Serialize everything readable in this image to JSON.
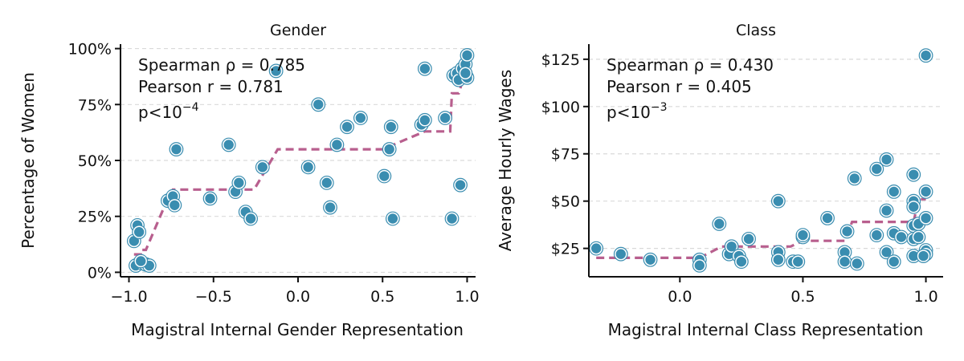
{
  "chart_data": [
    {
      "type": "scatter",
      "title": "Gender",
      "xlabel": "Magistral Internal Gender Representation",
      "ylabel": "Percentage of Women",
      "xlim": [
        -1.05,
        1.05
      ],
      "ylim": [
        -2,
        102
      ],
      "xticks": [
        -1.0,
        -0.5,
        0.0,
        0.5,
        1.0
      ],
      "xtick_labels": [
        "−1.0",
        "−0.5",
        "0.0",
        "0.5",
        "1.0"
      ],
      "yticks": [
        0,
        25,
        50,
        75,
        100
      ],
      "ytick_labels": [
        "0%",
        "25%",
        "50%",
        "75%",
        "100%"
      ],
      "grid": "horizontal dashed",
      "annotation": {
        "spearman": "Spearman ρ = 0.785",
        "pearson": "Pearson r = 0.781",
        "p_prefix": "p<",
        "p_base": "10",
        "p_exp": "−4"
      },
      "colors": {
        "points": "#3a8db0",
        "fit": "#b85f8e"
      },
      "points": [
        [
          -0.97,
          14
        ],
        [
          -0.95,
          21
        ],
        [
          -0.94,
          18
        ],
        [
          -0.96,
          3
        ],
        [
          -0.92,
          4
        ],
        [
          -0.9,
          3.5
        ],
        [
          -0.88,
          3
        ],
        [
          -0.93,
          5
        ],
        [
          -0.77,
          32
        ],
        [
          -0.74,
          34
        ],
        [
          -0.73,
          30
        ],
        [
          -0.72,
          55
        ],
        [
          -0.52,
          33
        ],
        [
          -0.41,
          57
        ],
        [
          -0.37,
          36
        ],
        [
          -0.35,
          40
        ],
        [
          -0.31,
          27
        ],
        [
          -0.28,
          24
        ],
        [
          -0.21,
          47
        ],
        [
          -0.13,
          90
        ],
        [
          0.06,
          47
        ],
        [
          0.12,
          75
        ],
        [
          0.17,
          40
        ],
        [
          0.19,
          29
        ],
        [
          0.23,
          57
        ],
        [
          0.29,
          65
        ],
        [
          0.37,
          69
        ],
        [
          0.51,
          43
        ],
        [
          0.54,
          55
        ],
        [
          0.55,
          65
        ],
        [
          0.56,
          24
        ],
        [
          0.73,
          66
        ],
        [
          0.75,
          68
        ],
        [
          0.75,
          91
        ],
        [
          0.87,
          69
        ],
        [
          0.91,
          24
        ],
        [
          0.92,
          88
        ],
        [
          0.94,
          89
        ],
        [
          0.95,
          86
        ],
        [
          0.96,
          39
        ],
        [
          0.97,
          91
        ],
        [
          0.99,
          93
        ],
        [
          1.0,
          97
        ],
        [
          1.0,
          87
        ],
        [
          0.99,
          89
        ]
      ],
      "fit": [
        [
          -0.97,
          8
        ],
        [
          -0.93,
          8
        ],
        [
          -0.93,
          10
        ],
        [
          -0.9,
          10
        ],
        [
          -0.77,
          33
        ],
        [
          -0.74,
          37
        ],
        [
          -0.26,
          37
        ],
        [
          -0.12,
          55
        ],
        [
          0.5,
          55
        ],
        [
          0.75,
          63
        ],
        [
          0.9,
          63
        ],
        [
          0.91,
          80
        ],
        [
          0.95,
          80
        ],
        [
          1.0,
          92
        ]
      ]
    },
    {
      "type": "scatter",
      "title": "Class",
      "xlabel": "Magistral Internal Class Representation",
      "ylabel": "Average Hourly Wages",
      "xlim": [
        -0.37,
        1.07
      ],
      "ylim": [
        10,
        133
      ],
      "xticks": [
        0.0,
        0.5,
        1.0
      ],
      "xtick_labels": [
        "0.0",
        "0.5",
        "1.0"
      ],
      "yticks": [
        25,
        50,
        75,
        100,
        125
      ],
      "ytick_labels": [
        "$25",
        "$50",
        "$75",
        "$100",
        "$125"
      ],
      "grid": "horizontal dashed",
      "annotation": {
        "spearman": "Spearman ρ = 0.430",
        "pearson": "Pearson r = 0.405",
        "p_prefix": "p<",
        "p_base": "10",
        "p_exp": "−3"
      },
      "colors": {
        "points": "#3a8db0",
        "fit": "#b85f8e"
      },
      "points": [
        [
          -0.34,
          25
        ],
        [
          -0.24,
          22
        ],
        [
          -0.12,
          19
        ],
        [
          0.08,
          19
        ],
        [
          0.08,
          16
        ],
        [
          0.16,
          38
        ],
        [
          0.2,
          22
        ],
        [
          0.21,
          26
        ],
        [
          0.24,
          21
        ],
        [
          0.25,
          18
        ],
        [
          0.28,
          30
        ],
        [
          0.4,
          23
        ],
        [
          0.4,
          19
        ],
        [
          0.4,
          50
        ],
        [
          0.46,
          18
        ],
        [
          0.48,
          18
        ],
        [
          0.5,
          31
        ],
        [
          0.5,
          32
        ],
        [
          0.6,
          41
        ],
        [
          0.67,
          23
        ],
        [
          0.67,
          18
        ],
        [
          0.68,
          34
        ],
        [
          0.71,
          62
        ],
        [
          0.72,
          17
        ],
        [
          0.8,
          32
        ],
        [
          0.8,
          67
        ],
        [
          0.84,
          45
        ],
        [
          0.84,
          72
        ],
        [
          0.84,
          23
        ],
        [
          0.87,
          33
        ],
        [
          0.87,
          55
        ],
        [
          0.87,
          18
        ],
        [
          0.9,
          31
        ],
        [
          0.95,
          64
        ],
        [
          0.95,
          50
        ],
        [
          0.95,
          47
        ],
        [
          0.95,
          37
        ],
        [
          0.95,
          30
        ],
        [
          0.95,
          21
        ],
        [
          0.97,
          38
        ],
        [
          0.97,
          31
        ],
        [
          1.0,
          127
        ],
        [
          1.0,
          55
        ],
        [
          1.0,
          41
        ],
        [
          1.0,
          24
        ],
        [
          1.0,
          22
        ],
        [
          0.99,
          21
        ]
      ],
      "fit": [
        [
          -0.34,
          20
        ],
        [
          0.08,
          20
        ],
        [
          0.17,
          26
        ],
        [
          0.35,
          26
        ],
        [
          0.45,
          26
        ],
        [
          0.5,
          29
        ],
        [
          0.67,
          29
        ],
        [
          0.7,
          39
        ],
        [
          0.95,
          39
        ],
        [
          0.97,
          51
        ],
        [
          1.0,
          51
        ]
      ]
    }
  ]
}
